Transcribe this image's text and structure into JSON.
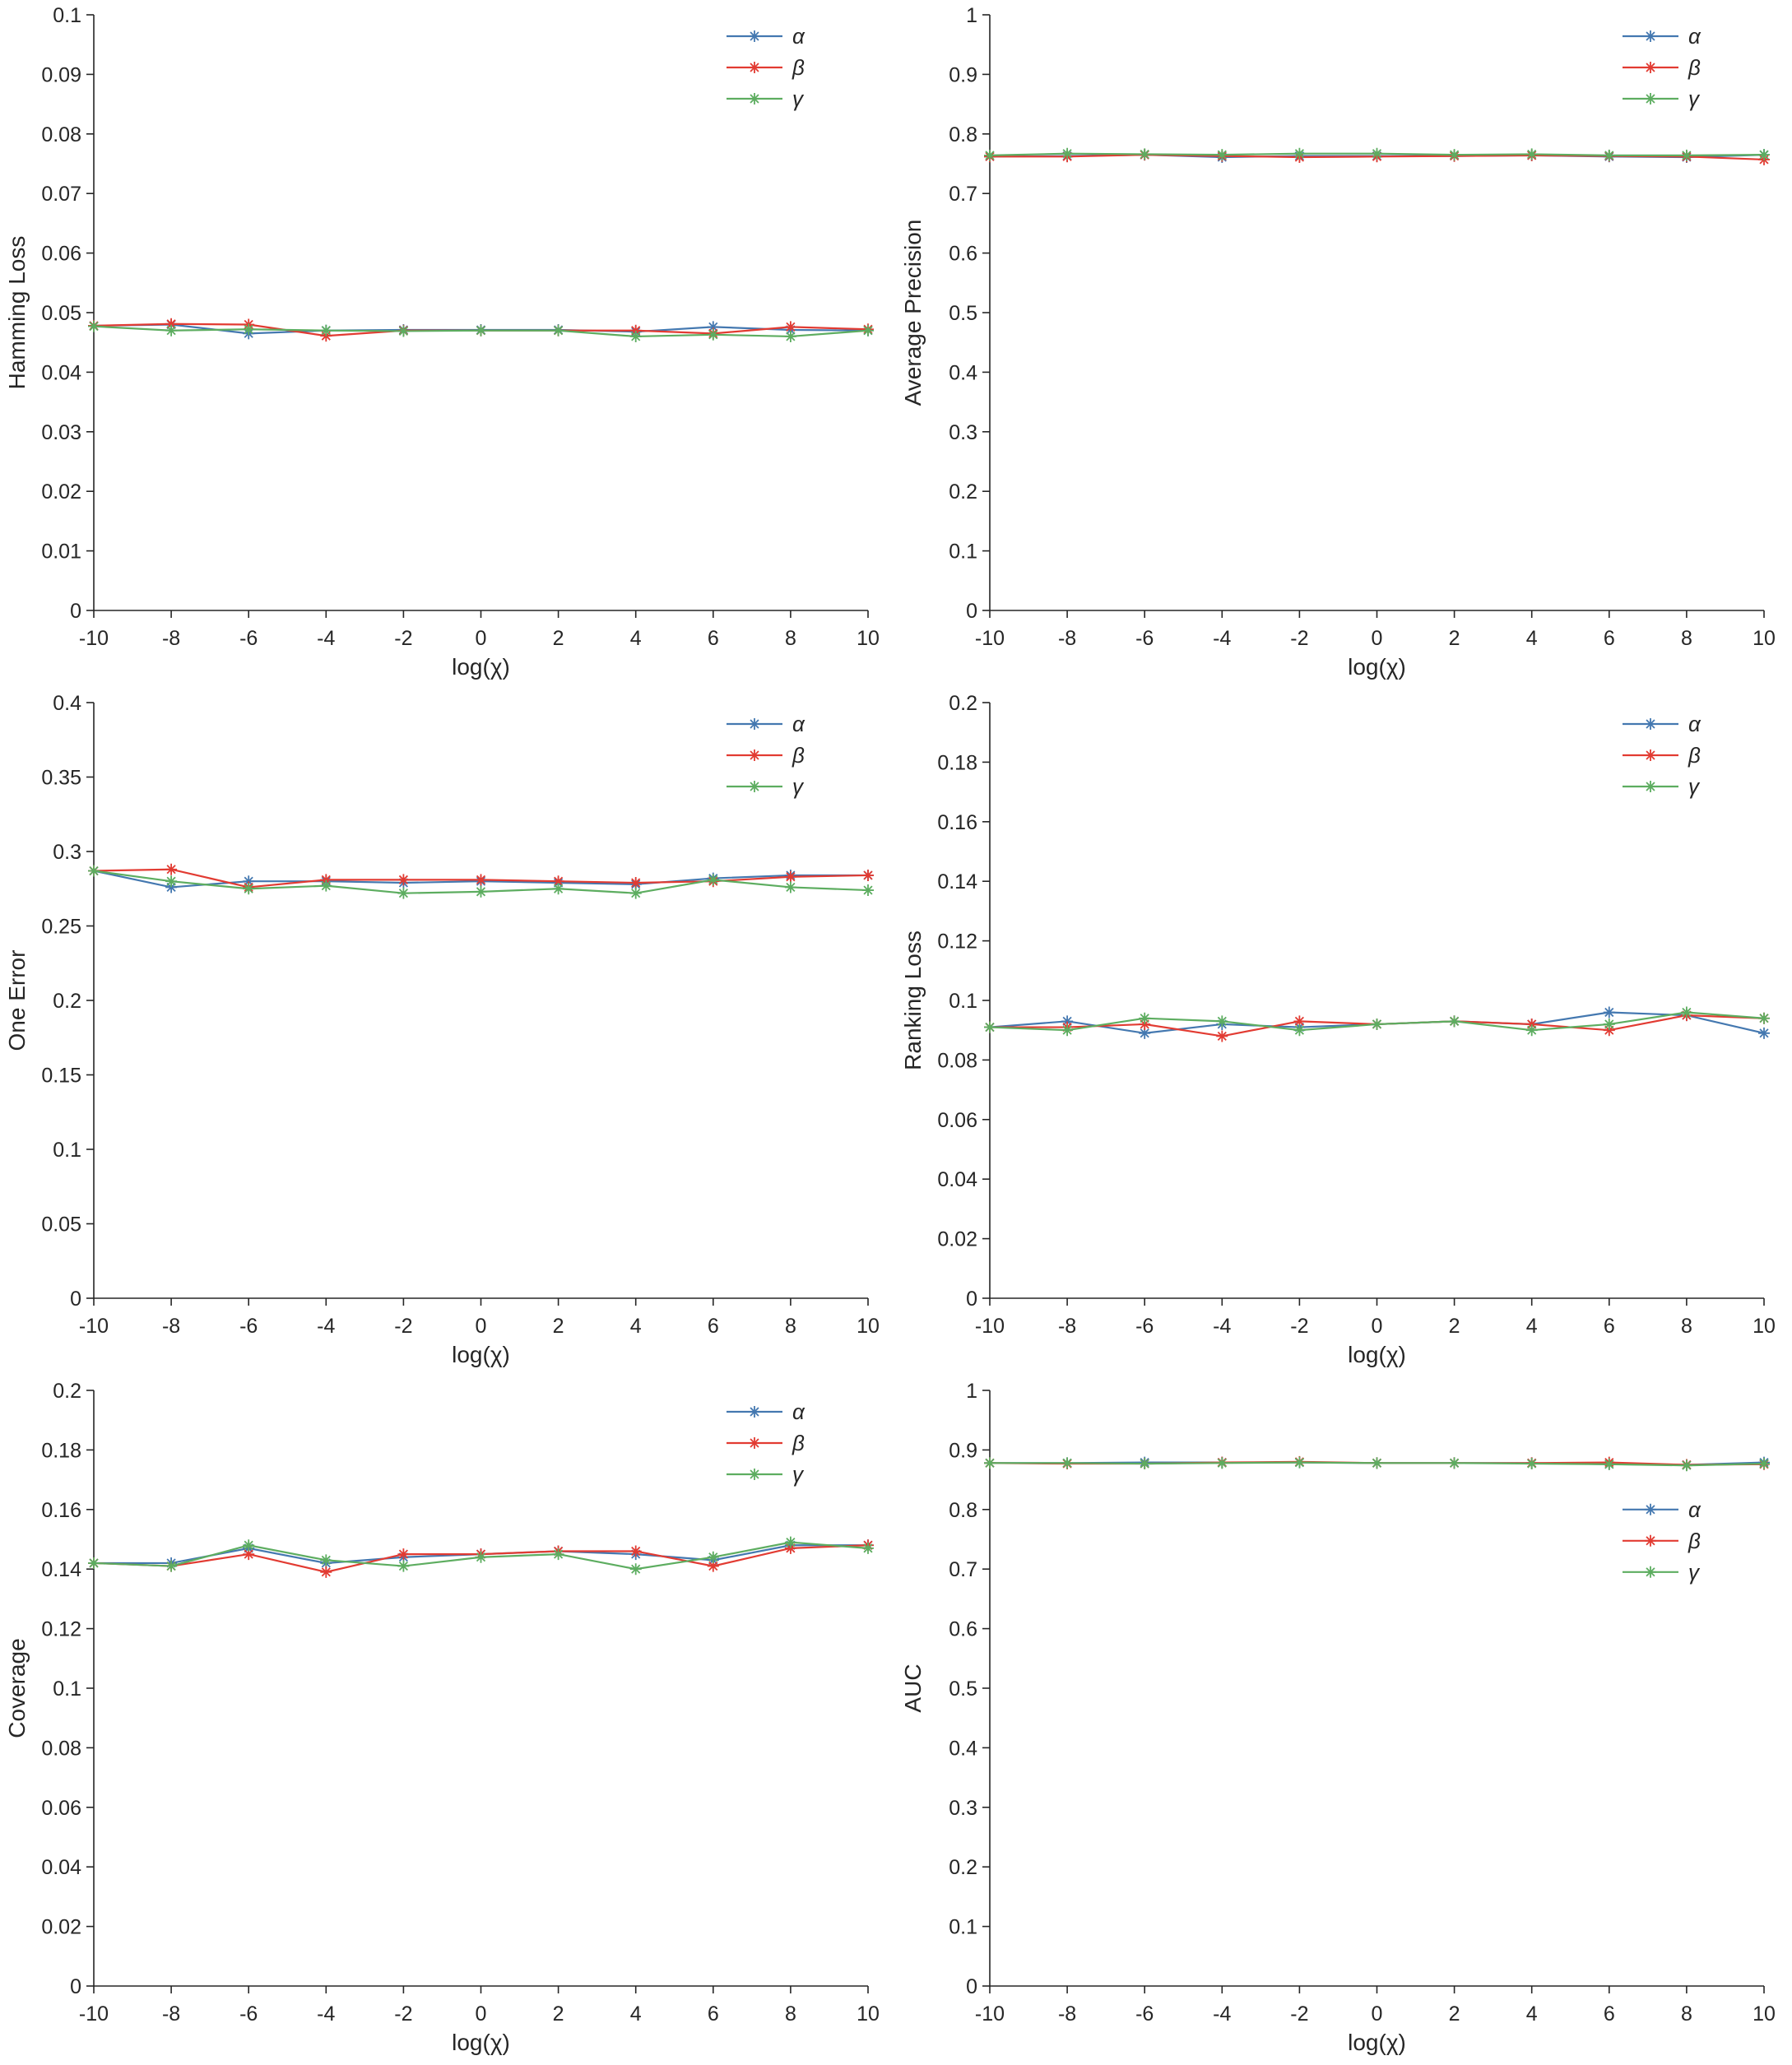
{
  "figure": {
    "description": "Six-panel parameter sensitivity plots versus log(chi)",
    "rows": 3,
    "cols": 2
  },
  "colors": {
    "alpha": "#4478b0",
    "beta": "#e23b32",
    "gamma": "#5dad60",
    "axis": "#262626",
    "background": "#ffffff"
  },
  "chart_data": [
    {
      "type": "line",
      "title": "",
      "xlabel": "log(χ)",
      "ylabel": "Hamming Loss",
      "xlim": [
        -10,
        10
      ],
      "ylim": [
        0,
        0.1
      ],
      "xtick": 2,
      "ytick": 0.01,
      "grid": false,
      "legend_position": "top-right",
      "x": [
        -10,
        -8,
        -6,
        -4,
        -2,
        0,
        2,
        4,
        6,
        8,
        10
      ],
      "series": [
        {
          "name": "α",
          "color_key": "alpha",
          "values": [
            0.0478,
            0.048,
            0.0465,
            0.047,
            0.0471,
            0.0471,
            0.0471,
            0.0468,
            0.0476,
            0.0471,
            0.047
          ]
        },
        {
          "name": "β",
          "color_key": "beta",
          "values": [
            0.0478,
            0.0481,
            0.048,
            0.0461,
            0.047,
            0.047,
            0.047,
            0.047,
            0.0465,
            0.0476,
            0.0472
          ]
        },
        {
          "name": "γ",
          "color_key": "gamma",
          "values": [
            0.0477,
            0.047,
            0.0472,
            0.047,
            0.0469,
            0.047,
            0.047,
            0.046,
            0.0463,
            0.046,
            0.047
          ]
        }
      ]
    },
    {
      "type": "line",
      "title": "",
      "xlabel": "log(χ)",
      "ylabel": "Average Precision",
      "xlim": [
        -10,
        10
      ],
      "ylim": [
        0,
        1
      ],
      "xtick": 2,
      "ytick": 0.1,
      "grid": false,
      "legend_position": "top-right",
      "x": [
        -10,
        -8,
        -6,
        -4,
        -2,
        0,
        2,
        4,
        6,
        8,
        10
      ],
      "series": [
        {
          "name": "α",
          "color_key": "alpha",
          "values": [
            0.762,
            0.763,
            0.765,
            0.761,
            0.763,
            0.763,
            0.763,
            0.764,
            0.762,
            0.761,
            0.765
          ]
        },
        {
          "name": "β",
          "color_key": "beta",
          "values": [
            0.762,
            0.762,
            0.765,
            0.763,
            0.761,
            0.762,
            0.763,
            0.764,
            0.763,
            0.762,
            0.757
          ]
        },
        {
          "name": "γ",
          "color_key": "gamma",
          "values": [
            0.764,
            0.767,
            0.766,
            0.765,
            0.767,
            0.767,
            0.765,
            0.766,
            0.764,
            0.764,
            0.765
          ]
        }
      ]
    },
    {
      "type": "line",
      "title": "",
      "xlabel": "log(χ)",
      "ylabel": "One Error",
      "xlim": [
        -10,
        10
      ],
      "ylim": [
        0,
        0.4
      ],
      "xtick": 2,
      "ytick": 0.05,
      "grid": false,
      "legend_position": "top-right",
      "x": [
        -10,
        -8,
        -6,
        -4,
        -2,
        0,
        2,
        4,
        6,
        8,
        10
      ],
      "series": [
        {
          "name": "α",
          "color_key": "alpha",
          "values": [
            0.287,
            0.276,
            0.28,
            0.28,
            0.279,
            0.28,
            0.279,
            0.278,
            0.282,
            0.284,
            0.284
          ]
        },
        {
          "name": "β",
          "color_key": "beta",
          "values": [
            0.287,
            0.288,
            0.276,
            0.281,
            0.281,
            0.281,
            0.28,
            0.279,
            0.28,
            0.283,
            0.284
          ]
        },
        {
          "name": "γ",
          "color_key": "gamma",
          "values": [
            0.287,
            0.28,
            0.275,
            0.277,
            0.272,
            0.273,
            0.275,
            0.272,
            0.281,
            0.276,
            0.274
          ]
        }
      ]
    },
    {
      "type": "line",
      "title": "",
      "xlabel": "log(χ)",
      "ylabel": "Ranking Loss",
      "xlim": [
        -10,
        10
      ],
      "ylim": [
        0,
        0.2
      ],
      "xtick": 2,
      "ytick": 0.02,
      "grid": false,
      "legend_position": "top-right",
      "x": [
        -10,
        -8,
        -6,
        -4,
        -2,
        0,
        2,
        4,
        6,
        8,
        10
      ],
      "series": [
        {
          "name": "α",
          "color_key": "alpha",
          "values": [
            0.091,
            0.093,
            0.089,
            0.092,
            0.091,
            0.092,
            0.093,
            0.092,
            0.096,
            0.095,
            0.089
          ]
        },
        {
          "name": "β",
          "color_key": "beta",
          "values": [
            0.091,
            0.091,
            0.092,
            0.088,
            0.093,
            0.092,
            0.093,
            0.092,
            0.09,
            0.095,
            0.094
          ]
        },
        {
          "name": "γ",
          "color_key": "gamma",
          "values": [
            0.091,
            0.09,
            0.094,
            0.093,
            0.09,
            0.092,
            0.093,
            0.09,
            0.092,
            0.096,
            0.094
          ]
        }
      ]
    },
    {
      "type": "line",
      "title": "",
      "xlabel": "log(χ)",
      "ylabel": "Coverage",
      "xlim": [
        -10,
        10
      ],
      "ylim": [
        0,
        0.2
      ],
      "xtick": 2,
      "ytick": 0.02,
      "grid": false,
      "legend_position": "top-right",
      "x": [
        -10,
        -8,
        -6,
        -4,
        -2,
        0,
        2,
        4,
        6,
        8,
        10
      ],
      "series": [
        {
          "name": "α",
          "color_key": "alpha",
          "values": [
            0.142,
            0.142,
            0.147,
            0.142,
            0.144,
            0.145,
            0.146,
            0.145,
            0.143,
            0.148,
            0.148
          ]
        },
        {
          "name": "β",
          "color_key": "beta",
          "values": [
            0.142,
            0.141,
            0.145,
            0.139,
            0.145,
            0.145,
            0.146,
            0.146,
            0.141,
            0.147,
            0.148
          ]
        },
        {
          "name": "γ",
          "color_key": "gamma",
          "values": [
            0.142,
            0.141,
            0.148,
            0.143,
            0.141,
            0.144,
            0.145,
            0.14,
            0.144,
            0.149,
            0.147
          ]
        }
      ]
    },
    {
      "type": "line",
      "title": "",
      "xlabel": "log(χ)",
      "ylabel": "AUC",
      "xlim": [
        -10,
        10
      ],
      "ylim": [
        0,
        1
      ],
      "xtick": 2,
      "ytick": 0.1,
      "grid": false,
      "legend_position": "mid-right",
      "x": [
        -10,
        -8,
        -6,
        -4,
        -2,
        0,
        2,
        4,
        6,
        8,
        10
      ],
      "series": [
        {
          "name": "α",
          "color_key": "alpha",
          "values": [
            0.878,
            0.878,
            0.879,
            0.879,
            0.879,
            0.878,
            0.878,
            0.878,
            0.876,
            0.875,
            0.879
          ]
        },
        {
          "name": "β",
          "color_key": "beta",
          "values": [
            0.878,
            0.877,
            0.877,
            0.879,
            0.88,
            0.878,
            0.878,
            0.878,
            0.879,
            0.875,
            0.876
          ]
        },
        {
          "name": "γ",
          "color_key": "gamma",
          "values": [
            0.878,
            0.878,
            0.877,
            0.878,
            0.879,
            0.878,
            0.878,
            0.877,
            0.876,
            0.874,
            0.877
          ]
        }
      ]
    }
  ]
}
